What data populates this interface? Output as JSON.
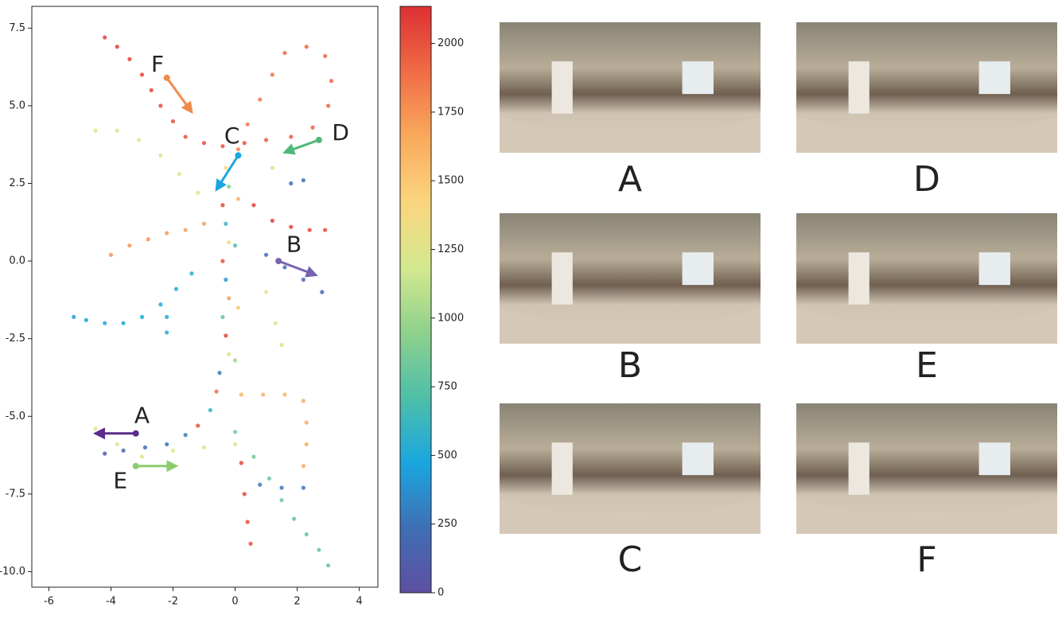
{
  "chart_data": {
    "type": "scatter",
    "xlim": [
      -6.55,
      4.6
    ],
    "ylim": [
      -10.5,
      8.2
    ],
    "xticks": [
      -6,
      -4,
      -2,
      0,
      2,
      4
    ],
    "yticks": [
      {
        "value": 7.5,
        "label": "7.5"
      },
      {
        "value": 5,
        "label": "5.0"
      },
      {
        "value": 2.5,
        "label": "2.5"
      },
      {
        "value": 0,
        "label": "0.0"
      },
      {
        "value": -2.5,
        "label": "-2.5"
      },
      {
        "value": -5,
        "label": "-5.0"
      },
      {
        "value": -7.5,
        "label": "-7.5"
      },
      {
        "value": -10,
        "label": "-10.0"
      }
    ],
    "colormap": [
      "#5e4fa2",
      "#3f6fb5",
      "#1aa7e0",
      "#4fbfa8",
      "#8fd18c",
      "#d4e98e",
      "#fbd57e",
      "#f9a95c",
      "#f06c45",
      "#dd2f33"
    ],
    "clim": [
      0,
      2135
    ],
    "cticks": [
      0,
      250,
      500,
      750,
      1000,
      1250,
      1500,
      1750,
      2000
    ],
    "points": [
      [
        -4.2,
        7.2,
        2080
      ],
      [
        -3.8,
        6.9,
        2070
      ],
      [
        -3.4,
        6.5,
        2060
      ],
      [
        -3.0,
        6.0,
        2050
      ],
      [
        -2.7,
        5.5,
        2040
      ],
      [
        -2.4,
        5.0,
        2030
      ],
      [
        -2.0,
        4.5,
        2020
      ],
      [
        -1.6,
        4.0,
        2010
      ],
      [
        -1.0,
        3.8,
        2000
      ],
      [
        -0.4,
        3.7,
        1990
      ],
      [
        0.3,
        3.8,
        1980
      ],
      [
        1.0,
        3.9,
        1970
      ],
      [
        1.8,
        4.0,
        1960
      ],
      [
        2.5,
        4.3,
        1950
      ],
      [
        3.0,
        5.0,
        1940
      ],
      [
        3.1,
        5.8,
        1930
      ],
      [
        2.9,
        6.6,
        1920
      ],
      [
        2.3,
        6.9,
        1910
      ],
      [
        1.6,
        6.7,
        1900
      ],
      [
        1.2,
        6.0,
        1880
      ],
      [
        0.8,
        5.2,
        1860
      ],
      [
        0.4,
        4.4,
        1840
      ],
      [
        0.1,
        3.6,
        1820
      ],
      [
        -0.3,
        3.0,
        1400
      ],
      [
        -0.2,
        2.4,
        900
      ],
      [
        -0.4,
        1.8,
        2050
      ],
      [
        -0.3,
        1.2,
        600
      ],
      [
        -0.2,
        0.6,
        1300
      ],
      [
        -0.4,
        0.0,
        2000
      ],
      [
        -0.3,
        -0.6,
        400
      ],
      [
        -0.2,
        -1.2,
        1700
      ],
      [
        -0.4,
        -1.8,
        800
      ],
      [
        -0.3,
        -2.4,
        2050
      ],
      [
        -0.2,
        -3.0,
        1200
      ],
      [
        -0.5,
        -3.6,
        300
      ],
      [
        -0.6,
        -4.2,
        1900
      ],
      [
        -0.8,
        -4.8,
        600
      ],
      [
        -1.2,
        -5.3,
        2000
      ],
      [
        0.1,
        2.0,
        1600
      ],
      [
        0.0,
        0.5,
        700
      ],
      [
        0.1,
        -1.5,
        1500
      ],
      [
        0.0,
        -3.2,
        1000
      ],
      [
        -1.6,
        -5.6,
        300
      ],
      [
        -2.2,
        -5.9,
        250
      ],
      [
        -2.9,
        -6.0,
        200
      ],
      [
        -3.6,
        -6.1,
        150
      ],
      [
        -4.2,
        -6.2,
        100
      ],
      [
        -4.5,
        -5.4,
        1300
      ],
      [
        -3.8,
        -5.9,
        1280
      ],
      [
        -3.0,
        -6.3,
        1260
      ],
      [
        -2.0,
        -6.1,
        1240
      ],
      [
        -1.0,
        -6.0,
        1220
      ],
      [
        0.0,
        -5.9,
        1200
      ],
      [
        -5.2,
        -1.8,
        450
      ],
      [
        -4.8,
        -1.9,
        460
      ],
      [
        -4.2,
        -2.0,
        470
      ],
      [
        -3.6,
        -2.0,
        480
      ],
      [
        -3.0,
        -1.8,
        490
      ],
      [
        -2.4,
        -1.4,
        500
      ],
      [
        -1.9,
        -0.9,
        510
      ],
      [
        -1.4,
        -0.4,
        520
      ],
      [
        -2.2,
        -1.8,
        530
      ],
      [
        -2.2,
        -2.3,
        540
      ],
      [
        0.0,
        -5.5,
        850
      ],
      [
        0.6,
        -6.3,
        840
      ],
      [
        1.1,
        -7.0,
        830
      ],
      [
        1.5,
        -7.7,
        820
      ],
      [
        1.9,
        -8.3,
        810
      ],
      [
        2.3,
        -8.8,
        800
      ],
      [
        2.7,
        -9.3,
        790
      ],
      [
        3.0,
        -9.8,
        780
      ],
      [
        0.2,
        -4.3,
        1600
      ],
      [
        0.9,
        -4.3,
        1610
      ],
      [
        1.6,
        -4.3,
        1620
      ],
      [
        2.2,
        -4.5,
        1630
      ],
      [
        2.3,
        -5.2,
        1640
      ],
      [
        2.3,
        -5.9,
        1650
      ],
      [
        2.2,
        -6.6,
        1660
      ],
      [
        0.8,
        -7.2,
        280
      ],
      [
        1.5,
        -7.3,
        270
      ],
      [
        2.2,
        -7.3,
        260
      ],
      [
        0.2,
        -6.5,
        2040
      ],
      [
        0.3,
        -7.5,
        2030
      ],
      [
        0.4,
        -8.4,
        2020
      ],
      [
        0.5,
        -9.1,
        2010
      ],
      [
        1.0,
        0.2,
        220
      ],
      [
        1.6,
        -0.2,
        210
      ],
      [
        2.2,
        -0.6,
        200
      ],
      [
        2.8,
        -1.0,
        190
      ],
      [
        1.8,
        2.5,
        230
      ],
      [
        2.2,
        2.6,
        240
      ],
      [
        0.6,
        1.8,
        2080
      ],
      [
        1.2,
        1.3,
        2070
      ],
      [
        1.8,
        1.1,
        2060
      ],
      [
        2.4,
        1.0,
        2050
      ],
      [
        2.9,
        1.0,
        2040
      ],
      [
        -4.5,
        4.2,
        1250
      ],
      [
        -3.8,
        4.2,
        1240
      ],
      [
        -3.1,
        3.9,
        1230
      ],
      [
        -2.4,
        3.4,
        1220
      ],
      [
        -1.8,
        2.8,
        1210
      ],
      [
        -1.2,
        2.2,
        1200
      ],
      [
        -4.0,
        0.2,
        1750
      ],
      [
        -3.4,
        0.5,
        1740
      ],
      [
        -2.8,
        0.7,
        1730
      ],
      [
        -2.2,
        0.9,
        1720
      ],
      [
        -1.6,
        1.0,
        1710
      ],
      [
        -1.0,
        1.2,
        1700
      ],
      [
        1.0,
        -1.0,
        1300
      ],
      [
        1.3,
        -2.0,
        1290
      ],
      [
        1.5,
        -2.7,
        1280
      ],
      [
        1.2,
        3.0,
        1350
      ]
    ],
    "annotations": [
      {
        "text": "A",
        "color": "#5b2d8e",
        "label_at": [
          -3.0,
          -5.0
        ],
        "from": [
          -3.2,
          -5.55
        ],
        "to": [
          -4.5,
          -5.55
        ]
      },
      {
        "text": "B",
        "color": "#7562b0",
        "label_at": [
          1.9,
          0.5
        ],
        "from": [
          1.4,
          0.0
        ],
        "to": [
          2.6,
          -0.45
        ]
      },
      {
        "text": "C",
        "color": "#1aa7e0",
        "label_at": [
          -0.1,
          4.0
        ],
        "from": [
          0.1,
          3.4
        ],
        "to": [
          -0.6,
          2.3
        ]
      },
      {
        "text": "D",
        "color": "#4fb878",
        "label_at": [
          3.4,
          4.1
        ],
        "from": [
          2.7,
          3.9
        ],
        "to": [
          1.6,
          3.5
        ]
      },
      {
        "text": "E",
        "color": "#8ccc6e",
        "label_at": [
          -3.7,
          -7.1
        ],
        "from": [
          -3.2,
          -6.6
        ],
        "to": [
          -1.9,
          -6.6
        ]
      },
      {
        "text": "F",
        "color": "#f08a4b",
        "label_at": [
          -2.5,
          6.3
        ],
        "from": [
          -2.2,
          5.9
        ],
        "to": [
          -1.4,
          4.8
        ]
      }
    ]
  },
  "panels": [
    {
      "label": "A",
      "color": "#6a2c91"
    },
    {
      "label": "D",
      "color": "#5dbb7a"
    },
    {
      "label": "B",
      "color": "#7b68b5"
    },
    {
      "label": "E",
      "color": "#8ccc6e"
    },
    {
      "label": "C",
      "color": "#1aa7e0"
    },
    {
      "label": "F",
      "color": "#f08a4b"
    }
  ]
}
